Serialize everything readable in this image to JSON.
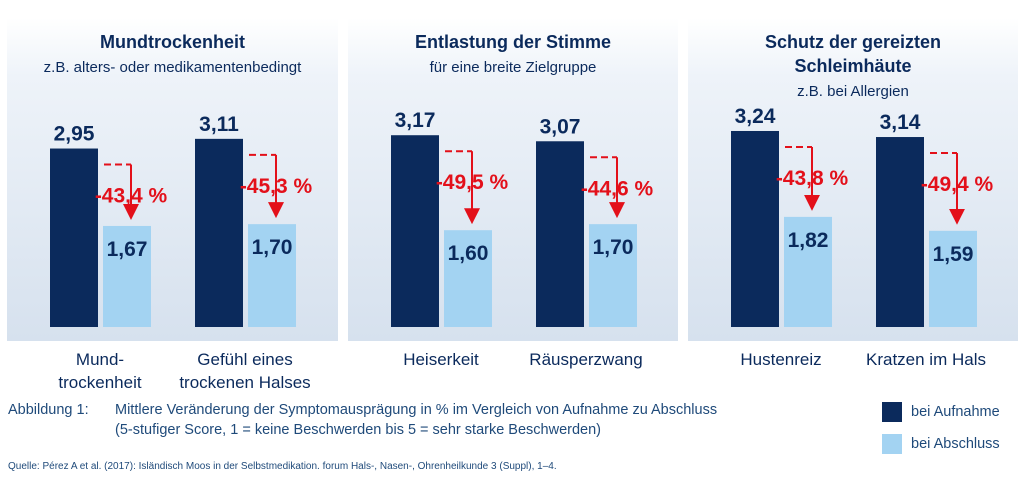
{
  "chart_data": {
    "type": "bar",
    "ylim": [
      0,
      3.5
    ],
    "colors": {
      "aufnahme": "#0b2a5c",
      "abschluss": "#a3d3f2",
      "change": "#e3101a"
    },
    "series": [
      {
        "name": "bei Aufnahme",
        "color": "#0b2a5c"
      },
      {
        "name": "bei Abschluss",
        "color": "#a3d3f2"
      }
    ],
    "panels": [
      {
        "title_lines": [
          "Mundtrockenheit"
        ],
        "subtitle": "z.B. alters- oder medikamentenbedingt",
        "groups": [
          {
            "category_lines": [
              "Mund-",
              "trockenheit"
            ],
            "aufnahme": 2.95,
            "abschluss": 1.67,
            "aufnahme_label": "2,95",
            "abschluss_label": "1,67",
            "change": -43.4,
            "change_label": "-43,4 %"
          },
          {
            "category_lines": [
              "Gefühl eines",
              "trockenen Halses"
            ],
            "aufnahme": 3.11,
            "abschluss": 1.7,
            "aufnahme_label": "3,11",
            "abschluss_label": "1,70",
            "change": -45.3,
            "change_label": "-45,3 %"
          }
        ]
      },
      {
        "title_lines": [
          "Entlastung der Stimme"
        ],
        "subtitle": "für eine breite Zielgruppe",
        "groups": [
          {
            "category_lines": [
              "Heiserkeit"
            ],
            "aufnahme": 3.17,
            "abschluss": 1.6,
            "aufnahme_label": "3,17",
            "abschluss_label": "1,60",
            "change": -49.5,
            "change_label": "-49,5 %"
          },
          {
            "category_lines": [
              "Räusperzwang"
            ],
            "aufnahme": 3.07,
            "abschluss": 1.7,
            "aufnahme_label": "3,07",
            "abschluss_label": "1,70",
            "change": -44.6,
            "change_label": "-44,6 %"
          }
        ]
      },
      {
        "title_lines": [
          "Schutz der gereizten",
          "Schleimhäute"
        ],
        "subtitle": "z.B. bei Allergien",
        "groups": [
          {
            "category_lines": [
              "Hustenreiz"
            ],
            "aufnahme": 3.24,
            "abschluss": 1.82,
            "aufnahme_label": "3,24",
            "abschluss_label": "1,82",
            "change": -43.8,
            "change_label": "-43,8 %"
          },
          {
            "category_lines": [
              "Kratzen im Hals"
            ],
            "aufnahme": 3.14,
            "abschluss": 1.59,
            "aufnahme_label": "3,14",
            "abschluss_label": "1,59",
            "change": -49.4,
            "change_label": "-49,4 %"
          }
        ]
      }
    ]
  },
  "caption": {
    "label": "Abbildung 1:",
    "line1": "Mittlere Veränderung der Symptomausprägung in % im Vergleich von Aufnahme zu Abschluss",
    "line2": "(5-stufiger Score, 1 = keine Beschwerden bis 5 = sehr starke Beschwerden)"
  },
  "legend": {
    "aufnahme": "bei Aufnahme",
    "abschluss": "bei Abschluss"
  },
  "source": "Quelle: Pérez A et al. (2017): Isländisch Moos in der Selbstmedikation. forum Hals-, Nasen-, Ohrenheilkunde 3 (Suppl), 1–4."
}
